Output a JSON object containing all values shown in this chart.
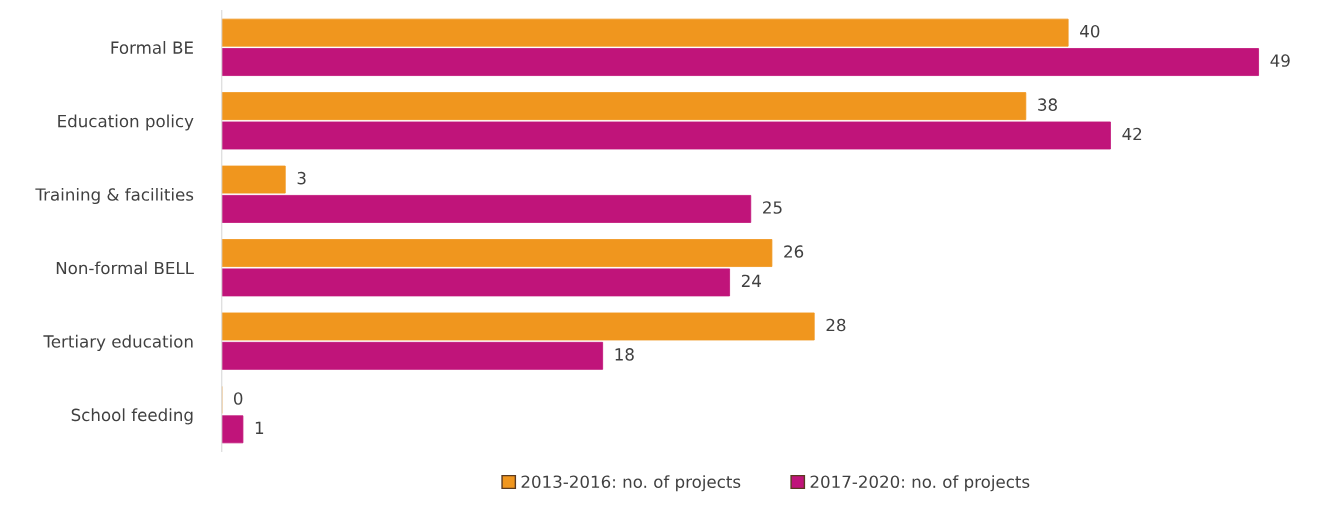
{
  "chart_data": {
    "type": "bar",
    "orientation": "horizontal",
    "categories": [
      "Formal BE",
      "Education policy",
      "Training & facilities",
      "Non-formal BELL",
      "Tertiary education",
      "School feeding"
    ],
    "series": [
      {
        "name": "2013-2016: no. of projects",
        "color": "#f0961e",
        "values": [
          40,
          38,
          3,
          26,
          28,
          0
        ]
      },
      {
        "name": "2017-2020: no. of projects",
        "color": "#c0147a",
        "values": [
          49,
          42,
          25,
          24,
          18,
          1
        ]
      }
    ],
    "data_labels": true,
    "legend": "bottom",
    "grid": false,
    "tick_labels": "y"
  }
}
